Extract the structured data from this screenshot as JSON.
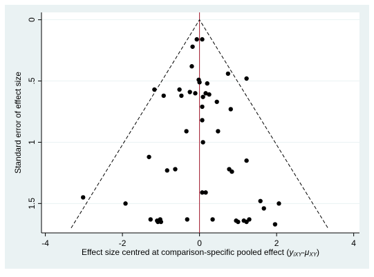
{
  "chart_data": {
    "type": "scatter",
    "xlabel_parts": [
      "Effect size centred at comparison-specific pooled effect (",
      "y",
      "iXY",
      "-",
      "μ",
      "XY",
      ")"
    ],
    "ylabel": "Standard error of effect size",
    "x": [
      -0.07,
      0.07,
      -0.18,
      -0.2,
      0.74,
      1.22,
      -0.02,
      0,
      0.2,
      -1.17,
      -0.52,
      -0.25,
      0.16,
      0.25,
      -0.93,
      -0.47,
      -0.11,
      0.09,
      0.45,
      0.07,
      0.81,
      0.07,
      -0.34,
      0.48,
      0.09,
      -1.31,
      1.22,
      -0.63,
      -0.84,
      0.77,
      0.84,
      0.07,
      0.16,
      -3.02,
      -1.92,
      1.58,
      2.06,
      1.67,
      -1.27,
      -1.1,
      -1.02,
      -1.08,
      -1.0,
      -0.32,
      0.34,
      0.95,
      1.0,
      1.15,
      1.22,
      1.29,
      1.96
    ],
    "values": [
      0.16,
      0.16,
      0.22,
      0.38,
      0.44,
      0.48,
      0.49,
      0.51,
      0.52,
      0.57,
      0.57,
      0.59,
      0.6,
      0.61,
      0.62,
      0.62,
      0.6,
      0.63,
      0.67,
      0.71,
      0.73,
      0.82,
      0.91,
      0.91,
      1.0,
      1.12,
      1.15,
      1.22,
      1.23,
      1.22,
      1.24,
      1.41,
      1.41,
      1.45,
      1.5,
      1.48,
      1.5,
      1.54,
      1.63,
      1.64,
      1.63,
      1.65,
      1.65,
      1.63,
      1.63,
      1.64,
      1.65,
      1.64,
      1.65,
      1.63,
      1.67
    ],
    "color": "#000000",
    "funnel": {
      "x": [
        -3.33,
        0,
        3.33
      ],
      "y": [
        1.7,
        0,
        1.7
      ],
      "color": "#000000"
    },
    "reference_x": 0,
    "reference_color": "#a0152a",
    "xlim": [
      -4.1,
      4.15
    ],
    "ylim": [
      -0.06,
      1.74
    ],
    "y_reversed": true,
    "xticks": [
      -4,
      -2,
      0,
      2,
      4
    ],
    "yticks": [
      0,
      {
        "value": 0.5,
        "label": ".5"
      },
      1,
      1.5
    ],
    "grid": true
  }
}
